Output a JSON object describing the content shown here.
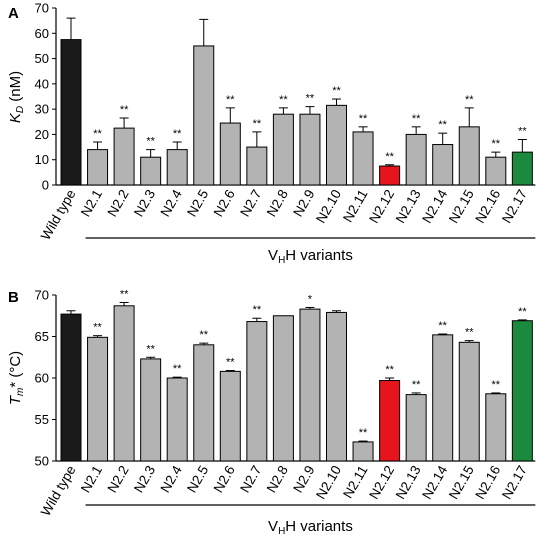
{
  "chart_data": [
    {
      "type": "bar",
      "panel_letter": "A",
      "ylabel_main": "K",
      "ylabel_sub": "D",
      "ylabel_unit": " (nM)",
      "ylim": [
        0,
        70
      ],
      "yticks": [
        0,
        10,
        20,
        30,
        40,
        50,
        60,
        70
      ],
      "categories": [
        "Wild type",
        "N2.1",
        "N2.2",
        "N2.3",
        "N2.4",
        "N2.5",
        "N2.6",
        "N2.7",
        "N2.8",
        "N2.9",
        "N2.10",
        "N2.11",
        "N2.12",
        "N2.13",
        "N2.14",
        "N2.15",
        "N2.16",
        "N2.17"
      ],
      "values": [
        57.5,
        14,
        22.5,
        11,
        14,
        55,
        24.5,
        15,
        28,
        28,
        31.5,
        21,
        7.5,
        20,
        16,
        23,
        11,
        13
      ],
      "errors": [
        8.5,
        3,
        4,
        3,
        3,
        10.5,
        6,
        6,
        2.5,
        3,
        2.5,
        2,
        0.5,
        3,
        4.5,
        7.5,
        2,
        5
      ],
      "significance": [
        "",
        "**",
        "**",
        "**",
        "**",
        "",
        "**",
        "**",
        "**",
        "**",
        "**",
        "**",
        "**",
        "**",
        "**",
        "**",
        "**",
        "**"
      ],
      "bar_colors": [
        "#1a1a1a",
        "#b3b3b3",
        "#b3b3b3",
        "#b3b3b3",
        "#b3b3b3",
        "#b3b3b3",
        "#b3b3b3",
        "#b3b3b3",
        "#b3b3b3",
        "#b3b3b3",
        "#b3b3b3",
        "#b3b3b3",
        "#e8141b",
        "#b3b3b3",
        "#b3b3b3",
        "#b3b3b3",
        "#b3b3b3",
        "#1b8a3e"
      ],
      "group_label_main": "V",
      "group_label_sub": "H",
      "group_label_rest": "H variants"
    },
    {
      "type": "bar",
      "panel_letter": "B",
      "ylabel_main": "T",
      "ylabel_sub": "m",
      "ylabel_unit": "* (°C)",
      "ylim": [
        50,
        70
      ],
      "yticks": [
        50,
        55,
        60,
        65,
        70
      ],
      "categories": [
        "Wild type",
        "N2.1",
        "N2.2",
        "N2.3",
        "N2.4",
        "N2.5",
        "N2.6",
        "N2.7",
        "N2.8",
        "N2.9",
        "N2.10",
        "N2.11",
        "N2.12",
        "N2.13",
        "N2.14",
        "N2.15",
        "N2.16",
        "N2.17"
      ],
      "values": [
        67.7,
        64.9,
        68.7,
        62.3,
        60,
        64,
        60.8,
        66.8,
        67.5,
        68.3,
        67.9,
        52.3,
        59.7,
        58,
        65.2,
        64.3,
        58.1,
        66.9
      ],
      "errors": [
        0.4,
        0.2,
        0.4,
        0.2,
        0.1,
        0.2,
        0.1,
        0.4,
        0,
        0.2,
        0.2,
        0.1,
        0.3,
        0.2,
        0.1,
        0.2,
        0.1,
        0.1
      ],
      "significance": [
        "",
        "**",
        "**",
        "**",
        "**",
        "**",
        "**",
        "**",
        "",
        "*",
        "",
        "**",
        "**",
        "**",
        "**",
        "**",
        "**",
        "**"
      ],
      "bar_colors": [
        "#1a1a1a",
        "#b3b3b3",
        "#b3b3b3",
        "#b3b3b3",
        "#b3b3b3",
        "#b3b3b3",
        "#b3b3b3",
        "#b3b3b3",
        "#b3b3b3",
        "#b3b3b3",
        "#b3b3b3",
        "#b3b3b3",
        "#e8141b",
        "#b3b3b3",
        "#b3b3b3",
        "#b3b3b3",
        "#b3b3b3",
        "#1b8a3e"
      ],
      "group_label_main": "V",
      "group_label_sub": "H",
      "group_label_rest": "H variants"
    }
  ]
}
